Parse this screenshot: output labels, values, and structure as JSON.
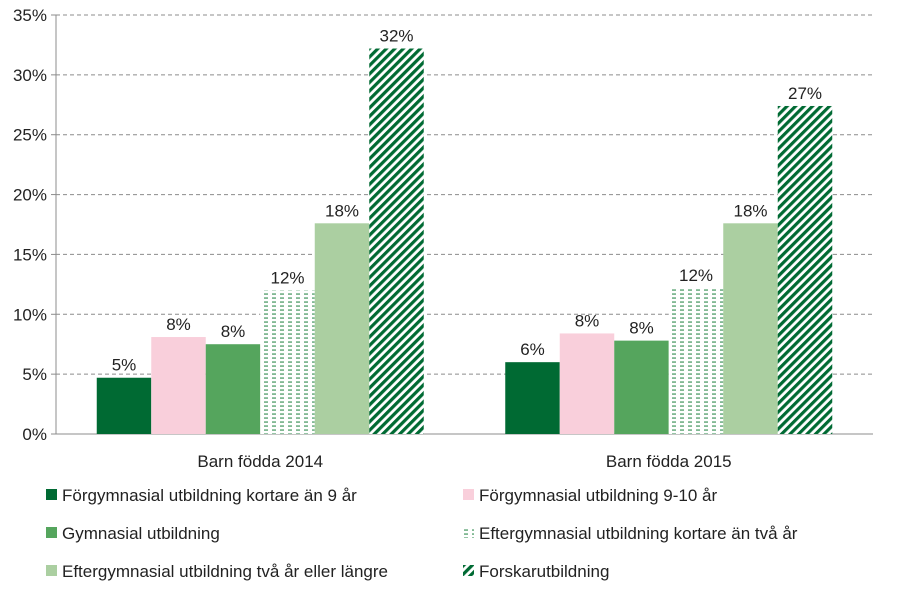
{
  "chart_data": {
    "type": "bar",
    "title": "",
    "xlabel": "",
    "ylabel": "",
    "categories": [
      "Barn födda 2014",
      "Barn födda 2015"
    ],
    "ylim": [
      0,
      35
    ],
    "yticks": [
      0,
      5,
      10,
      15,
      20,
      25,
      30,
      35
    ],
    "ytick_labels": [
      "0%",
      "5%",
      "10%",
      "15%",
      "20%",
      "25%",
      "30%",
      "35%"
    ],
    "grid": true,
    "legend_position": "bottom",
    "series": [
      {
        "name": "Förgymnasial utbildning kortare än 9 år",
        "values": [
          4.7,
          6.0
        ],
        "labels": [
          "5%",
          "6%"
        ],
        "color": "#006a33",
        "pattern": "solid"
      },
      {
        "name": "Förgymnasial utbildning 9-10 år",
        "values": [
          8.1,
          8.4
        ],
        "labels": [
          "8%",
          "8%"
        ],
        "color": "#f9cfdb",
        "pattern": "solid"
      },
      {
        "name": "Gymnasial utbildning",
        "values": [
          7.5,
          7.8
        ],
        "labels": [
          "8%",
          "8%"
        ],
        "color": "#55a55d",
        "pattern": "solid"
      },
      {
        "name": "Eftergymnasial utbildning kortare än två år",
        "values": [
          12.0,
          12.2
        ],
        "labels": [
          "12%",
          "12%"
        ],
        "color": "#2e8b4d",
        "pattern": "dashed-horizontal"
      },
      {
        "name": "Eftergymnasial utbildning två år eller längre",
        "values": [
          17.6,
          17.6
        ],
        "labels": [
          "18%",
          "18%"
        ],
        "color": "#abcfa1",
        "pattern": "solid"
      },
      {
        "name": "Forskarutbildning",
        "values": [
          32.2,
          27.4
        ],
        "labels": [
          "32%",
          "27%"
        ],
        "color": "#006a33",
        "pattern": "diagonal"
      }
    ]
  }
}
